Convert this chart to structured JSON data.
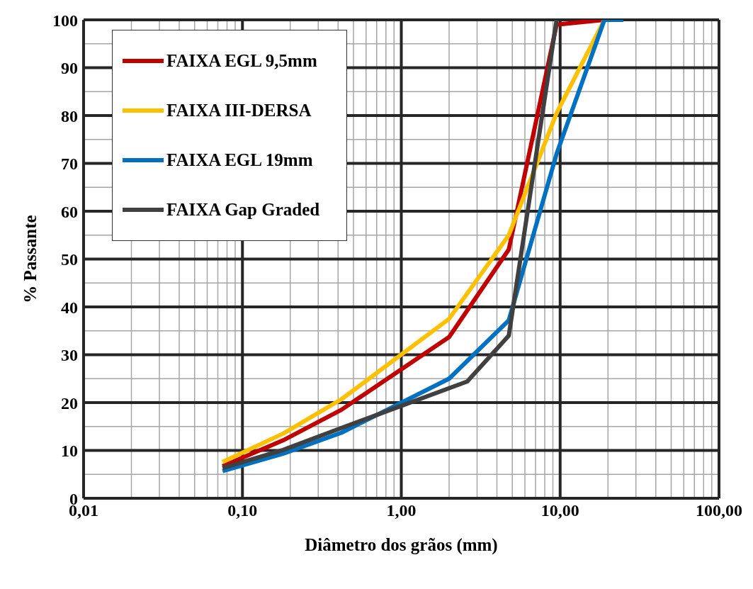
{
  "chart_data": {
    "type": "line",
    "xlabel": "Diâmetro dos grãos (mm)",
    "ylabel": "% Passante",
    "log": "x",
    "grid": true,
    "legend": "top left",
    "xlim": [
      0.01,
      100
    ],
    "xticks": [
      {
        "value": 0.01,
        "label": "0,01"
      },
      {
        "value": 0.02,
        "label": null
      },
      {
        "value": 0.03,
        "label": null
      },
      {
        "value": 0.04,
        "label": null
      },
      {
        "value": 0.05,
        "label": null
      },
      {
        "value": 0.06,
        "label": null
      },
      {
        "value": 0.07,
        "label": null
      },
      {
        "value": 0.08,
        "label": null
      },
      {
        "value": 0.09,
        "label": null
      },
      {
        "value": 0.1,
        "label": "0,10"
      },
      {
        "value": 0.2,
        "label": null
      },
      {
        "value": 0.3,
        "label": null
      },
      {
        "value": 0.4,
        "label": null
      },
      {
        "value": 0.5,
        "label": null
      },
      {
        "value": 0.6,
        "label": null
      },
      {
        "value": 0.7,
        "label": null
      },
      {
        "value": 0.8,
        "label": null
      },
      {
        "value": 0.9,
        "label": null
      },
      {
        "value": 1,
        "label": "1,00"
      },
      {
        "value": 2,
        "label": null
      },
      {
        "value": 3,
        "label": null
      },
      {
        "value": 4,
        "label": null
      },
      {
        "value": 5,
        "label": null
      },
      {
        "value": 6,
        "label": null
      },
      {
        "value": 7,
        "label": null
      },
      {
        "value": 8,
        "label": null
      },
      {
        "value": 9,
        "label": null
      },
      {
        "value": 10,
        "label": "10,00"
      },
      {
        "value": 20,
        "label": null
      },
      {
        "value": 30,
        "label": null
      },
      {
        "value": 40,
        "label": null
      },
      {
        "value": 50,
        "label": null
      },
      {
        "value": 60,
        "label": null
      },
      {
        "value": 70,
        "label": null
      },
      {
        "value": 80,
        "label": null
      },
      {
        "value": 90,
        "label": null
      },
      {
        "value": 100,
        "label": "100,00"
      }
    ],
    "ylim": [
      0,
      100
    ],
    "yticks": [
      0,
      {
        "value": 5,
        "label": null
      },
      10,
      {
        "value": 15,
        "label": null
      },
      20,
      {
        "value": 25,
        "label": null
      },
      30,
      {
        "value": 35,
        "label": null
      },
      40,
      {
        "value": 45,
        "label": null
      },
      50,
      {
        "value": 55,
        "label": null
      },
      60,
      {
        "value": 65,
        "label": null
      },
      70,
      {
        "value": 75,
        "label": null
      },
      80,
      {
        "value": 85,
        "label": null
      },
      90,
      {
        "value": 95,
        "label": null
      },
      100
    ],
    "series": [
      {
        "name": "FAIXA EGL 9,5mm",
        "color": "#c00000",
        "x": [
          0.075,
          0.18,
          0.42,
          2,
          4.75,
          9.5,
          19
        ],
        "values": [
          6.7,
          12.1,
          18.5,
          33.7,
          52,
          99,
          100
        ]
      },
      {
        "name": "FAIXA III-DERSA",
        "color": "#ffc000",
        "x": [
          0.075,
          0.18,
          0.42,
          2,
          4.75,
          9.5,
          19
        ],
        "values": [
          7.6,
          13.5,
          20.7,
          37.5,
          55,
          80.5,
          100
        ]
      },
      {
        "name": "FAIXA EGL 19mm",
        "color": "#0070c0",
        "x": [
          0.075,
          0.18,
          0.42,
          2,
          4.75,
          9.5,
          19,
          25
        ],
        "values": [
          5.7,
          9.3,
          13.7,
          25,
          37.2,
          72,
          100,
          100
        ]
      },
      {
        "name": "FAIXA Gap Graded",
        "color": "#404040",
        "x": [
          0.075,
          0.18,
          0.42,
          2.6,
          4.75,
          9.5
        ],
        "values": [
          6.3,
          10.1,
          14.7,
          24.4,
          34,
          100
        ]
      }
    ]
  }
}
